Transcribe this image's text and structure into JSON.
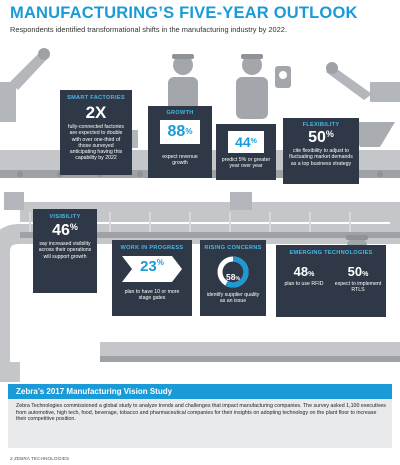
{
  "header": {
    "title": "MANUFACTURING’S FIVE-YEAR OUTLOOK",
    "subtitle": "Respondents identified transformational shifts in the manufacturing industry by 2022."
  },
  "colors": {
    "accent": "#1a9bd7",
    "card": "#2f3846",
    "belt": "#bfc1c4",
    "footer_bg": "#e9eaeb"
  },
  "cards": {
    "smart_factories": {
      "label": "SMART FACTORIES",
      "value": "2X",
      "text": "fully-connected factories are expected to double with over one-third of those surveyed anticipating having this capability by 2022"
    },
    "growth": {
      "label": "GROWTH",
      "value": "88",
      "pct": "%",
      "text": "expect revenue growth"
    },
    "growth2": {
      "value": "44",
      "pct": "%",
      "text": "predict 5% or greater year over year"
    },
    "flexibility": {
      "label": "FLEXIBILITY",
      "value": "50",
      "pct": "%",
      "text": "cite flexibility to adjust to fluctuating market demands as a top business strategy"
    },
    "visibility": {
      "label": "VISIBILITY",
      "value": "46",
      "pct": "%",
      "text": "say increased visibility across their operations will support growth"
    },
    "wip": {
      "label": "WORK IN PROGRESS",
      "value": "23",
      "pct": "%",
      "text": "plan to have 10 or more stage gates"
    },
    "concerns": {
      "label": "RISING CONCERNS",
      "value": "58",
      "pct": "%",
      "text": "identify supplier quality as an issue"
    },
    "emerging": {
      "label": "EMERGING TECHNOLOGIES",
      "left_value": "48",
      "left_pct": "%",
      "left_text": "plan to use RFID",
      "right_value": "50",
      "right_pct": "%",
      "right_text": "expect to implement RTLS"
    }
  },
  "footer": {
    "heading": "Zebra’s 2017 Manufacturing Vision Study",
    "body": "Zebra Technologies commissioned a global study to analyze trends and challenges that impact manufacturing companies. The survey asked 1,100 executives from automotive, high tech, food, beverage, tobacco and pharmaceutical companies for their insights on adopting technology on the plant floor to increase their competitive position.",
    "page": "2  ZEBRA TECHNOLOGIES"
  }
}
